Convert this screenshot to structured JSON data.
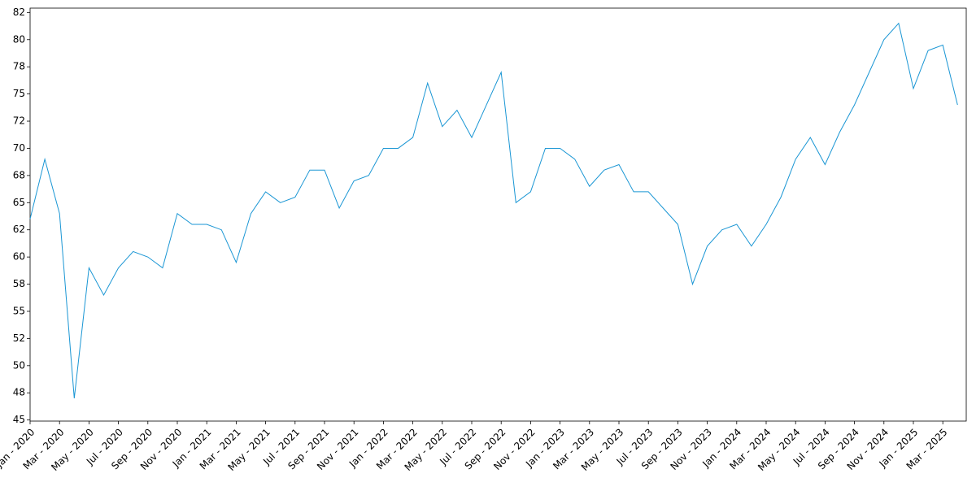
{
  "chart_data": {
    "type": "line",
    "x": [
      "2020-01",
      "2020-02",
      "2020-03",
      "2020-04",
      "2020-05",
      "2020-06",
      "2020-07",
      "2020-08",
      "2020-09",
      "2020-10",
      "2020-11",
      "2020-12",
      "2021-01",
      "2021-02",
      "2021-03",
      "2021-04",
      "2021-05",
      "2021-06",
      "2021-07",
      "2021-08",
      "2021-09",
      "2021-10",
      "2021-11",
      "2021-12",
      "2022-01",
      "2022-02",
      "2022-03",
      "2022-04",
      "2022-05",
      "2022-06",
      "2022-07",
      "2022-08",
      "2022-09",
      "2022-10",
      "2022-11",
      "2022-12",
      "2023-01",
      "2023-02",
      "2023-03",
      "2023-04",
      "2023-05",
      "2023-06",
      "2023-07",
      "2023-08",
      "2023-09",
      "2023-10",
      "2023-11",
      "2023-12",
      "2024-01",
      "2024-02",
      "2024-03",
      "2024-04",
      "2024-05",
      "2024-06",
      "2024-07",
      "2024-08",
      "2024-09",
      "2024-10",
      "2024-11",
      "2024-12",
      "2025-01",
      "2025-02",
      "2025-03",
      "2025-04"
    ],
    "series": [
      {
        "color": "#1a96d4",
        "values": [
          63.5,
          69,
          64,
          47,
          59,
          56.5,
          59,
          60.5,
          60,
          59,
          64,
          63,
          63,
          62.5,
          59.5,
          64,
          66,
          65,
          65.5,
          68,
          68,
          64.5,
          67,
          67.5,
          70,
          70,
          71,
          76,
          72,
          73.5,
          71,
          74,
          77,
          65,
          66,
          70,
          70,
          69,
          66.5,
          68,
          68.5,
          66,
          66,
          64.5,
          63,
          57.5,
          61,
          62.5,
          63,
          61,
          63,
          65.5,
          69,
          71,
          68.5,
          71.5,
          74,
          77,
          80,
          81.5,
          75.5,
          79,
          79.5,
          74
        ]
      }
    ],
    "ylim": [
      44.9,
      82.9
    ],
    "yticks": [
      45,
      {
        "value": 47.5,
        "label": "48"
      },
      50,
      {
        "value": 52.5,
        "label": "52"
      },
      55,
      {
        "value": 57.5,
        "label": "58"
      },
      60,
      {
        "value": 62.5,
        "label": "62"
      },
      65,
      {
        "value": 67.5,
        "label": "68"
      },
      70,
      {
        "value": 72.5,
        "label": "72"
      },
      75,
      {
        "value": 77.5,
        "label": "78"
      },
      80,
      {
        "value": 82.5,
        "label": "82"
      }
    ],
    "xticks": [
      {
        "value": "2020-01",
        "label": "Jan - 2020"
      },
      {
        "value": "2020-03",
        "label": "Mar - 2020"
      },
      {
        "value": "2020-05",
        "label": "May - 2020"
      },
      {
        "value": "2020-07",
        "label": "Jul - 2020"
      },
      {
        "value": "2020-09",
        "label": "Sep - 2020"
      },
      {
        "value": "2020-11",
        "label": "Nov - 2020"
      },
      {
        "value": "2021-01",
        "label": "Jan - 2021"
      },
      {
        "value": "2021-03",
        "label": "Mar - 2021"
      },
      {
        "value": "2021-05",
        "label": "May - 2021"
      },
      {
        "value": "2021-07",
        "label": "Jul - 2021"
      },
      {
        "value": "2021-09",
        "label": "Sep - 2021"
      },
      {
        "value": "2021-11",
        "label": "Nov - 2021"
      },
      {
        "value": "2022-01",
        "label": "Jan - 2022"
      },
      {
        "value": "2022-03",
        "label": "Mar - 2022"
      },
      {
        "value": "2022-05",
        "label": "May - 2022"
      },
      {
        "value": "2022-07",
        "label": "Jul - 2022"
      },
      {
        "value": "2022-09",
        "label": "Sep - 2022"
      },
      {
        "value": "2022-11",
        "label": "Nov - 2022"
      },
      {
        "value": "2023-01",
        "label": "Jan - 2023"
      },
      {
        "value": "2023-03",
        "label": "Mar - 2023"
      },
      {
        "value": "2023-05",
        "label": "May - 2023"
      },
      {
        "value": "2023-07",
        "label": "Jul - 2023"
      },
      {
        "value": "2023-09",
        "label": "Sep - 2023"
      },
      {
        "value": "2023-11",
        "label": "Nov - 2023"
      },
      {
        "value": "2024-01",
        "label": "Jan - 2024"
      },
      {
        "value": "2024-03",
        "label": "Mar - 2024"
      },
      {
        "value": "2024-05",
        "label": "May - 2024"
      },
      {
        "value": "2024-07",
        "label": "Jul - 2024"
      },
      {
        "value": "2024-09",
        "label": "Sep - 2024"
      },
      {
        "value": "2024-11",
        "label": "Nov - 2024"
      },
      {
        "value": "2025-01",
        "label": "Jan - 2025"
      },
      {
        "value": "2025-03",
        "label": "Mar - 2025"
      }
    ]
  }
}
